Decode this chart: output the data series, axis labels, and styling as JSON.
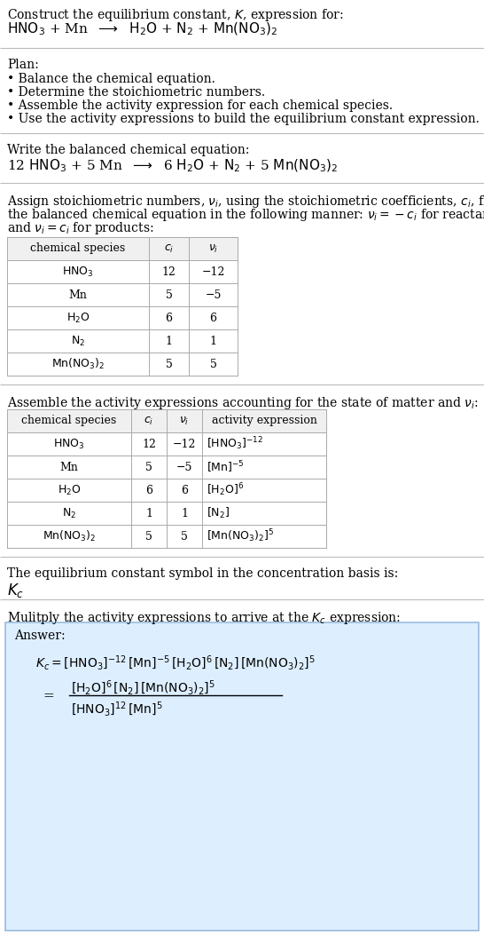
{
  "bg_color": "#ffffff",
  "title_line1": "Construct the equilibrium constant, $K$, expression for:",
  "plan_header": "Plan:",
  "plan_items": [
    "• Balance the chemical equation.",
    "• Determine the stoichiometric numbers.",
    "• Assemble the activity expression for each chemical species.",
    "• Use the activity expressions to build the equilibrium constant expression."
  ],
  "balanced_header": "Write the balanced chemical equation:",
  "stoich_lines": [
    "Assign stoichiometric numbers, $\\nu_i$, using the stoichiometric coefficients, $c_i$, from",
    "the balanced chemical equation in the following manner: $\\nu_i = -c_i$ for reactants",
    "and $\\nu_i = c_i$ for products:"
  ],
  "table1_headers": [
    "chemical species",
    "$c_i$",
    "$\\nu_i$"
  ],
  "table1_data": [
    [
      "$\\mathrm{HNO_3}$",
      "12",
      "−12"
    ],
    [
      "Mn",
      "5",
      "−5"
    ],
    [
      "$\\mathrm{H_2O}$",
      "6",
      "6"
    ],
    [
      "$\\mathrm{N_2}$",
      "1",
      "1"
    ],
    [
      "$\\mathrm{Mn(NO_3)_2}$",
      "5",
      "5"
    ]
  ],
  "assemble_header": "Assemble the activity expressions accounting for the state of matter and $\\nu_i$:",
  "table2_headers": [
    "chemical species",
    "$c_i$",
    "$\\nu_i$",
    "activity expression"
  ],
  "table2_data": [
    [
      "$\\mathrm{HNO_3}$",
      "12",
      "−12",
      "$[\\mathrm{HNO_3}]^{-12}$"
    ],
    [
      "Mn",
      "5",
      "−5",
      "$[\\mathrm{Mn}]^{-5}$"
    ],
    [
      "$\\mathrm{H_2O}$",
      "6",
      "6",
      "$[\\mathrm{H_2O}]^{6}$"
    ],
    [
      "$\\mathrm{N_2}$",
      "1",
      "1",
      "$[\\mathrm{N_2}]$"
    ],
    [
      "$\\mathrm{Mn(NO_3)_2}$",
      "5",
      "5",
      "$[\\mathrm{Mn(NO_3)_2}]^{5}$"
    ]
  ],
  "kc_header": "The equilibrium constant symbol in the concentration basis is:",
  "kc_symbol": "$K_c$",
  "multiply_header": "Mulitply the activity expressions to arrive at the $K_c$ expression:",
  "answer_box_color": "#ddeeff",
  "answer_label": "Answer:",
  "font_size_body": 10,
  "font_size_table": 9,
  "line_color": "#bbbbbb",
  "table_line_color": "#aaaaaa",
  "header_bg": "#f0f0f0"
}
